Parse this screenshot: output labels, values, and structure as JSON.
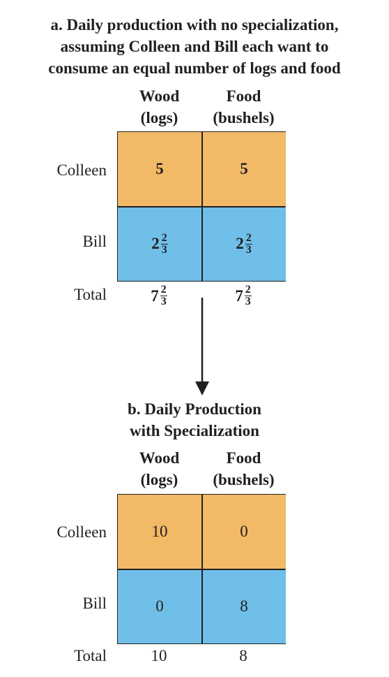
{
  "panel_a": {
    "title_lines": [
      "a. Daily production with no specialization,",
      "assuming Colleen and Bill each want to",
      "consume an equal number of logs and food"
    ],
    "columns": [
      {
        "line1": "Wood",
        "line2": "(logs)"
      },
      {
        "line1": "Food",
        "line2": "(bushels)"
      }
    ],
    "rows": [
      {
        "label": "Colleen",
        "wood": "5",
        "food": "5"
      },
      {
        "label": "Bill",
        "wood": {
          "whole": "2",
          "num": "2",
          "den": "3"
        },
        "food": {
          "whole": "2",
          "num": "2",
          "den": "3"
        }
      }
    ],
    "total": {
      "label": "Total",
      "wood": {
        "whole": "7",
        "num": "2",
        "den": "3"
      },
      "food": {
        "whole": "7",
        "num": "2",
        "den": "3"
      }
    }
  },
  "panel_b": {
    "title_lines": [
      "b. Daily Production",
      "with Specialization"
    ],
    "columns": [
      {
        "line1": "Wood",
        "line2": "(logs)"
      },
      {
        "line1": "Food",
        "line2": "(bushels)"
      }
    ],
    "rows": [
      {
        "label": "Colleen",
        "wood": "10",
        "food": "0"
      },
      {
        "label": "Bill",
        "wood": "0",
        "food": "8"
      }
    ],
    "total": {
      "label": "Total",
      "wood": "10",
      "food": "8"
    }
  },
  "colors": {
    "colleen_row": "#f2b967",
    "bill_row": "#70bfe9",
    "ink": "#231f20"
  }
}
